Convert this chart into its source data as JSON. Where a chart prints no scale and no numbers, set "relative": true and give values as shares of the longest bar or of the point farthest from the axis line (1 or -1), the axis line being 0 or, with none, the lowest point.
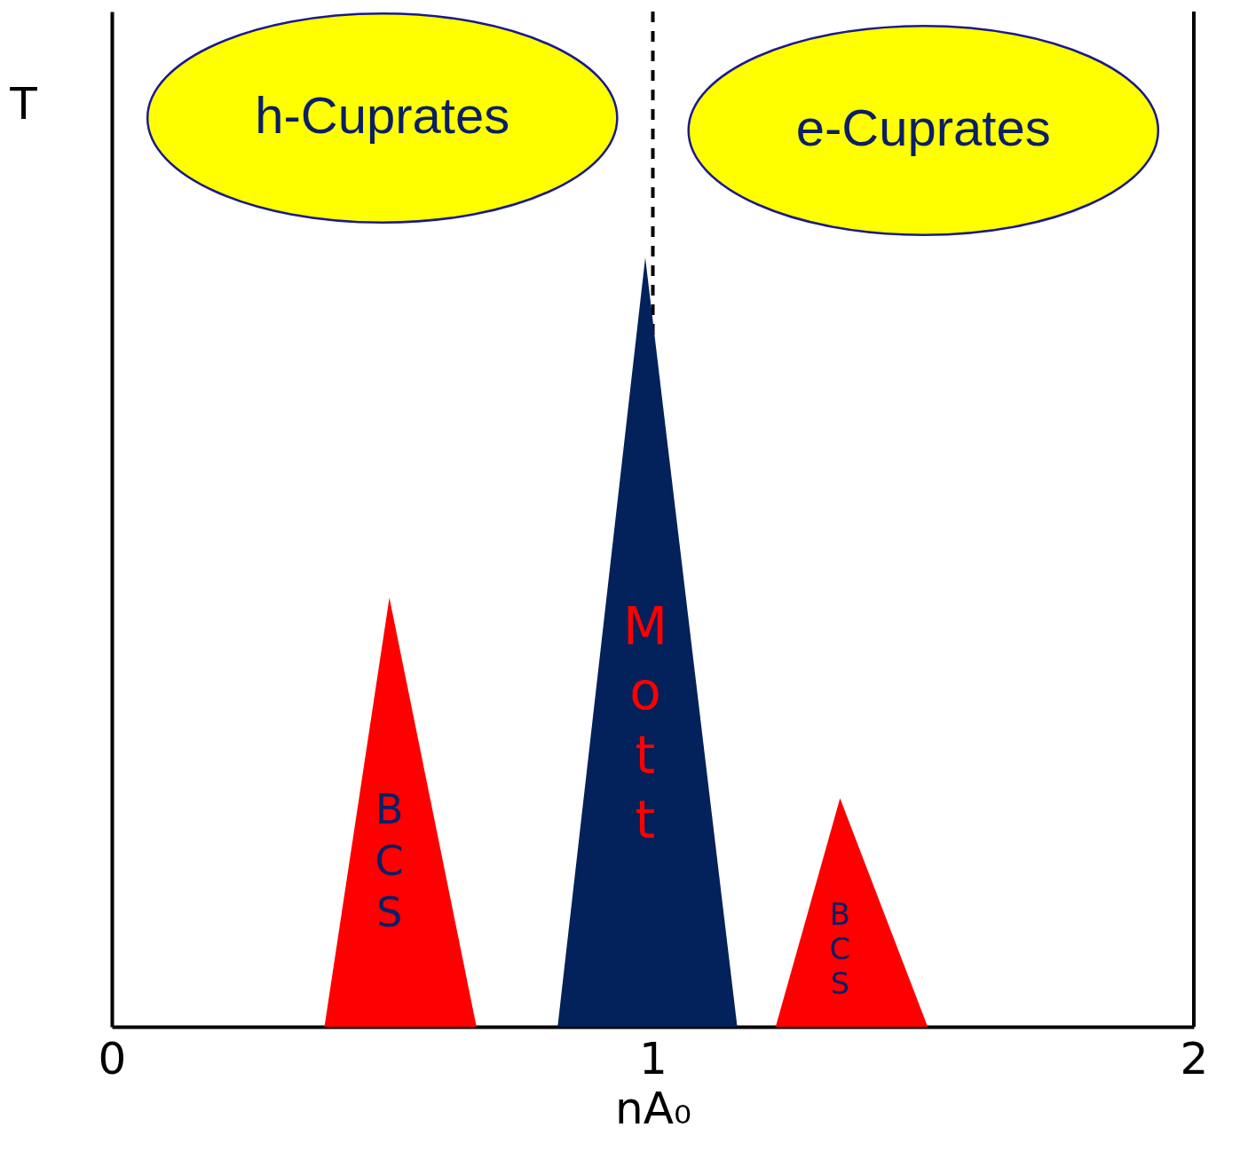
{
  "chart_data": {
    "type": "area",
    "relative": true,
    "xlabel": "nA₀",
    "ylabel": "T",
    "xlim": [
      0,
      2
    ],
    "xticks": [
      0,
      1,
      2
    ],
    "grid": false,
    "series": [
      {
        "name": "BCS",
        "color": "#ff0000",
        "x": [
          0.393,
          0.513,
          0.674
        ],
        "values": [
          0,
          0.558,
          0
        ]
      },
      {
        "name": "Mott",
        "color": "#03215a",
        "x": [
          0.824,
          0.986,
          1.156
        ],
        "values": [
          0,
          1,
          0
        ]
      },
      {
        "name": "BCS",
        "color": "#ff0000",
        "x": [
          1.227,
          1.346,
          1.508
        ],
        "values": [
          0,
          0.297,
          0
        ]
      }
    ],
    "ref_lines": [
      {
        "axis": "x",
        "value": 1,
        "line_style": "dashed",
        "color": "#000000"
      }
    ],
    "annotations": [
      "h-Cuprates",
      "e-Cuprates"
    ]
  }
}
